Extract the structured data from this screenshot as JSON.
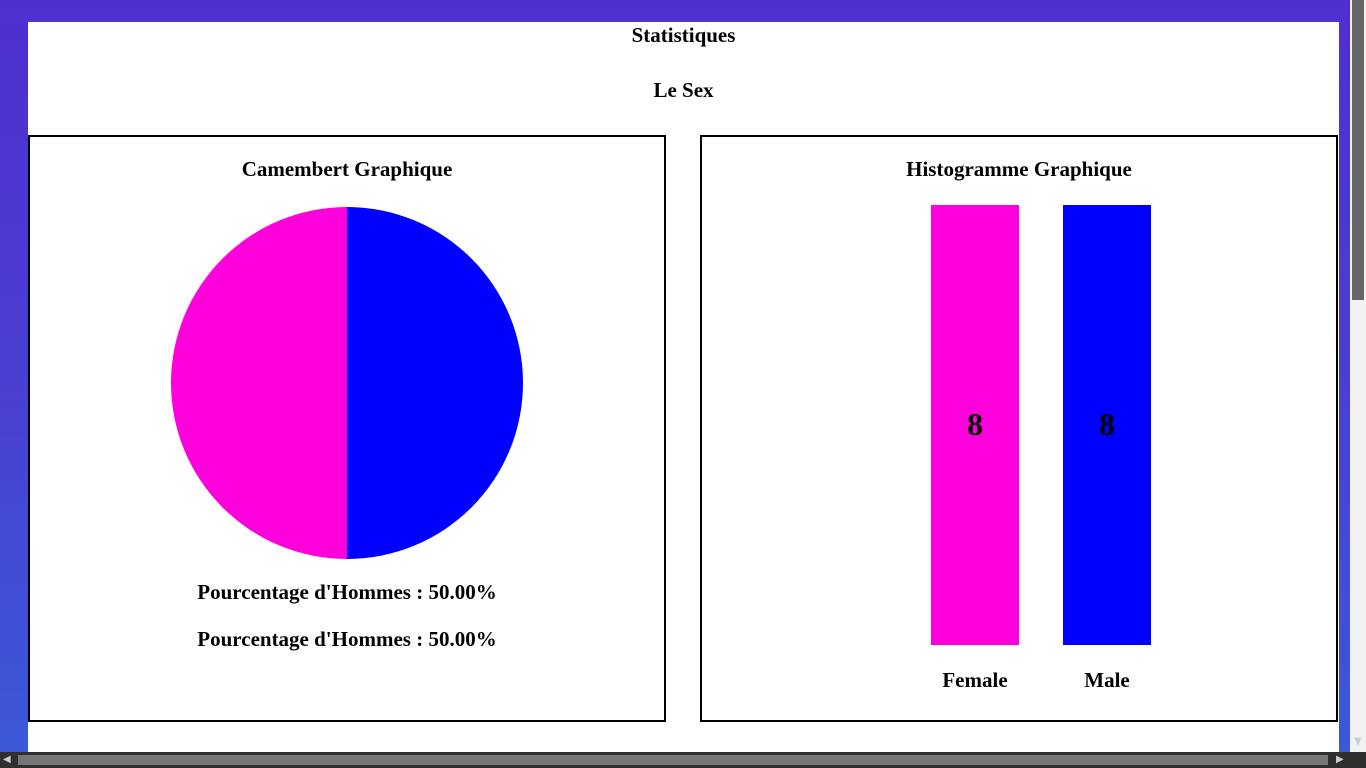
{
  "page": {
    "title": "Statistiques",
    "subtitle": "Le Sex"
  },
  "pie_panel": {
    "title": "Camembert Graphique",
    "line1": "Pourcentage d'Hommes : 50.00%",
    "line2": "Pourcentage d'Hommes : 50.00%"
  },
  "bar_panel": {
    "title": "Histogramme Graphique"
  },
  "colors": {
    "female": "#ff00dd",
    "male": "#0000ff"
  },
  "chart_data": [
    {
      "type": "pie",
      "title": "Camembert Graphique",
      "categories": [
        "Female",
        "Male"
      ],
      "values": [
        50,
        50
      ],
      "unit": "%"
    },
    {
      "type": "bar",
      "title": "Histogramme Graphique",
      "categories": [
        "Female",
        "Male"
      ],
      "values": [
        8,
        8
      ],
      "xlabel": "",
      "ylabel": "",
      "ylim": [
        0,
        8
      ]
    }
  ]
}
